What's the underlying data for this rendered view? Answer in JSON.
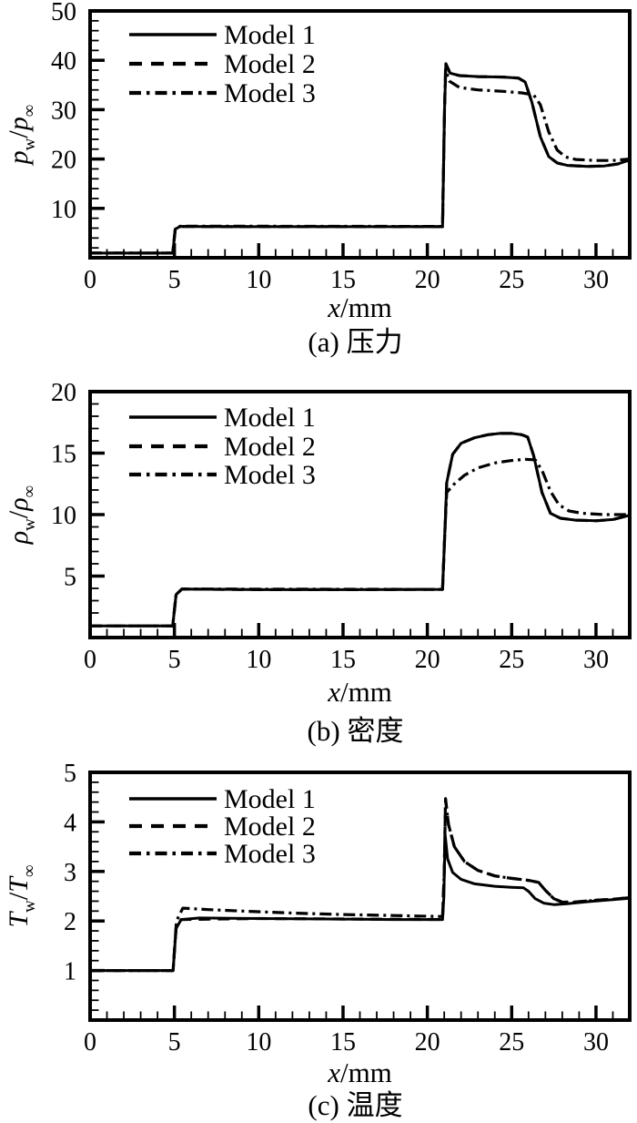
{
  "figure": {
    "ink_color": "#000000",
    "background_color": "#ffffff"
  },
  "chart_data": [
    {
      "type": "line",
      "title": "(a) 压力",
      "xlabel": "x/mm",
      "xlabel_var": "x",
      "xlabel_rest": "/mm",
      "ylabel": "p_w/p_inf",
      "ylabel_parts": {
        "num_base": "p",
        "num_sub": "w",
        "sep": "/",
        "den_base": "p",
        "den_sub": "∞"
      },
      "xlim": [
        0,
        32
      ],
      "ylim": [
        0,
        50
      ],
      "xticks": [
        0,
        5,
        10,
        15,
        20,
        25,
        30
      ],
      "yticks": [
        10,
        20,
        30,
        40,
        50
      ],
      "x_minor_step": 1,
      "y_minor_step": 2,
      "grid": false,
      "legend_position": "top-left",
      "series": [
        {
          "name": "Model 1",
          "line_style": "solid",
          "points": [
            [
              0,
              0.95
            ],
            [
              4.9,
              0.95
            ],
            [
              5.05,
              5.8
            ],
            [
              5.35,
              6.35
            ],
            [
              8,
              6.3
            ],
            [
              12,
              6.3
            ],
            [
              16,
              6.3
            ],
            [
              20.9,
              6.3
            ],
            [
              21.02,
              30
            ],
            [
              21.1,
              39.3
            ],
            [
              21.35,
              37.4
            ],
            [
              21.9,
              36.9
            ],
            [
              23,
              36.7
            ],
            [
              24.5,
              36.6
            ],
            [
              25.4,
              36.4
            ],
            [
              25.8,
              35.6
            ],
            [
              26.2,
              31.5
            ],
            [
              26.7,
              24.5
            ],
            [
              27.2,
              20.5
            ],
            [
              27.7,
              19.2
            ],
            [
              28.3,
              18.7
            ],
            [
              29.5,
              18.5
            ],
            [
              30.5,
              18.6
            ],
            [
              31.3,
              19.0
            ],
            [
              32,
              19.8
            ]
          ]
        },
        {
          "name": "Model 2",
          "line_style": "dashed",
          "points": [
            [
              0,
              0.95
            ],
            [
              4.9,
              0.95
            ],
            [
              5.05,
              5.8
            ],
            [
              5.35,
              6.35
            ],
            [
              8,
              6.3
            ],
            [
              12,
              6.3
            ],
            [
              16,
              6.3
            ],
            [
              20.9,
              6.3
            ],
            [
              21.02,
              30
            ],
            [
              21.1,
              39.3
            ],
            [
              21.35,
              37.4
            ],
            [
              21.9,
              36.9
            ],
            [
              23,
              36.7
            ],
            [
              24.5,
              36.6
            ],
            [
              25.4,
              36.4
            ],
            [
              25.8,
              35.6
            ],
            [
              26.2,
              31.5
            ],
            [
              26.7,
              24.5
            ],
            [
              27.2,
              20.5
            ],
            [
              27.7,
              19.2
            ],
            [
              28.3,
              18.7
            ],
            [
              29.5,
              18.5
            ],
            [
              30.5,
              18.6
            ],
            [
              31.3,
              19.0
            ],
            [
              32,
              19.8
            ]
          ]
        },
        {
          "name": "Model 3",
          "line_style": "dashdot",
          "points": [
            [
              0,
              0.95
            ],
            [
              4.9,
              0.95
            ],
            [
              5.05,
              5.8
            ],
            [
              5.35,
              6.4
            ],
            [
              20.9,
              6.35
            ],
            [
              21.02,
              30
            ],
            [
              21.08,
              38.2
            ],
            [
              21.3,
              35.8
            ],
            [
              21.9,
              34.5
            ],
            [
              23,
              34.0
            ],
            [
              24.5,
              33.7
            ],
            [
              25.6,
              33.4
            ],
            [
              26.3,
              33.0
            ],
            [
              26.7,
              31.0
            ],
            [
              27.2,
              25.5
            ],
            [
              27.7,
              21.8
            ],
            [
              28.2,
              20.4
            ],
            [
              28.8,
              19.9
            ],
            [
              30,
              19.7
            ],
            [
              31,
              19.7
            ],
            [
              32,
              20.0
            ]
          ]
        }
      ]
    },
    {
      "type": "line",
      "title": "(b) 密度",
      "xlabel": "x/mm",
      "xlabel_var": "x",
      "xlabel_rest": "/mm",
      "ylabel": "rho_w/rho_inf",
      "ylabel_parts": {
        "num_base": "ρ",
        "num_sub": "w",
        "sep": "/",
        "den_base": "ρ",
        "den_sub": "∞"
      },
      "xlim": [
        0,
        32
      ],
      "ylim": [
        0,
        20
      ],
      "xticks": [
        0,
        5,
        10,
        15,
        20,
        25,
        30
      ],
      "yticks": [
        5,
        10,
        15,
        20
      ],
      "x_minor_step": 1,
      "y_minor_step": 1,
      "grid": false,
      "legend_position": "top-left",
      "series": [
        {
          "name": "Model 1",
          "line_style": "solid",
          "points": [
            [
              0,
              0.95
            ],
            [
              4.9,
              0.95
            ],
            [
              5.1,
              3.5
            ],
            [
              5.45,
              3.95
            ],
            [
              10,
              3.9
            ],
            [
              15,
              3.9
            ],
            [
              20.9,
              3.92
            ],
            [
              21.05,
              9
            ],
            [
              21.15,
              12.6
            ],
            [
              21.5,
              14.9
            ],
            [
              22,
              15.8
            ],
            [
              22.8,
              16.25
            ],
            [
              23.6,
              16.5
            ],
            [
              24.3,
              16.6
            ],
            [
              25,
              16.6
            ],
            [
              25.6,
              16.5
            ],
            [
              25.95,
              16.3
            ],
            [
              26.3,
              14.8
            ],
            [
              26.8,
              11.8
            ],
            [
              27.3,
              10.1
            ],
            [
              27.9,
              9.7
            ],
            [
              28.8,
              9.55
            ],
            [
              30,
              9.5
            ],
            [
              31,
              9.6
            ],
            [
              32,
              9.95
            ]
          ]
        },
        {
          "name": "Model 2",
          "line_style": "dashed",
          "points": [
            [
              0,
              0.95
            ],
            [
              4.9,
              0.95
            ],
            [
              5.1,
              3.5
            ],
            [
              5.45,
              3.95
            ],
            [
              10,
              3.9
            ],
            [
              15,
              3.9
            ],
            [
              20.9,
              3.92
            ],
            [
              21.05,
              9
            ],
            [
              21.15,
              12.6
            ],
            [
              21.5,
              14.9
            ],
            [
              22,
              15.8
            ],
            [
              22.8,
              16.25
            ],
            [
              23.6,
              16.5
            ],
            [
              24.3,
              16.6
            ],
            [
              25,
              16.6
            ],
            [
              25.6,
              16.5
            ],
            [
              25.95,
              16.3
            ],
            [
              26.3,
              14.8
            ],
            [
              26.8,
              11.8
            ],
            [
              27.3,
              10.1
            ],
            [
              27.9,
              9.7
            ],
            [
              28.8,
              9.55
            ],
            [
              30,
              9.5
            ],
            [
              31,
              9.6
            ],
            [
              32,
              9.95
            ]
          ]
        },
        {
          "name": "Model 3",
          "line_style": "dashdot",
          "points": [
            [
              0,
              0.95
            ],
            [
              4.9,
              0.95
            ],
            [
              5.1,
              3.5
            ],
            [
              5.45,
              3.95
            ],
            [
              20.9,
              3.92
            ],
            [
              21.05,
              9
            ],
            [
              21.15,
              11.8
            ],
            [
              21.6,
              12.5
            ],
            [
              22.2,
              13.2
            ],
            [
              23,
              13.8
            ],
            [
              24,
              14.2
            ],
            [
              25,
              14.4
            ],
            [
              25.8,
              14.5
            ],
            [
              26.4,
              14.45
            ],
            [
              26.8,
              13.6
            ],
            [
              27.3,
              11.9
            ],
            [
              27.8,
              10.8
            ],
            [
              28.4,
              10.3
            ],
            [
              29.2,
              10.1
            ],
            [
              30.5,
              10.0
            ],
            [
              32,
              10.0
            ]
          ]
        }
      ]
    },
    {
      "type": "line",
      "title": "(c) 温度",
      "xlabel": "x/mm",
      "xlabel_var": "x",
      "xlabel_rest": "/mm",
      "ylabel": "T_w/T_inf",
      "ylabel_parts": {
        "num_base": "T",
        "num_sub": "w",
        "sep": "/",
        "den_base": "T",
        "den_sub": "∞"
      },
      "xlim": [
        0,
        32
      ],
      "ylim": [
        0,
        5
      ],
      "xticks": [
        0,
        5,
        10,
        15,
        20,
        25,
        30
      ],
      "yticks": [
        1,
        2,
        3,
        4,
        5
      ],
      "x_minor_step": 1,
      "y_minor_step": 0.2,
      "grid": false,
      "legend_position": "top-left",
      "series": [
        {
          "name": "Model 1",
          "line_style": "solid",
          "points": [
            [
              0,
              1.0
            ],
            [
              4.92,
              1.0
            ],
            [
              5.1,
              1.85
            ],
            [
              5.4,
              2.03
            ],
            [
              6.5,
              2.06
            ],
            [
              10,
              2.05
            ],
            [
              14,
              2.04
            ],
            [
              18,
              2.03
            ],
            [
              20.9,
              2.03
            ],
            [
              20.98,
              2.5
            ],
            [
              21.05,
              3.75
            ],
            [
              21.2,
              3.25
            ],
            [
              21.5,
              2.98
            ],
            [
              22,
              2.84
            ],
            [
              22.8,
              2.75
            ],
            [
              24,
              2.7
            ],
            [
              25,
              2.68
            ],
            [
              25.7,
              2.67
            ],
            [
              26,
              2.6
            ],
            [
              26.4,
              2.45
            ],
            [
              26.9,
              2.36
            ],
            [
              27.5,
              2.33
            ],
            [
              28.3,
              2.35
            ],
            [
              29.5,
              2.39
            ],
            [
              31,
              2.43
            ],
            [
              32,
              2.46
            ]
          ]
        },
        {
          "name": "Model 2",
          "line_style": "dashed",
          "points": [
            [
              0,
              1.0
            ],
            [
              4.92,
              1.0
            ],
            [
              5.1,
              1.85
            ],
            [
              5.4,
              2.03
            ],
            [
              10,
              2.05
            ],
            [
              20.9,
              2.03
            ],
            [
              21.0,
              3.0
            ],
            [
              21.08,
              4.47
            ],
            [
              21.25,
              3.95
            ],
            [
              21.6,
              3.5
            ],
            [
              22.2,
              3.2
            ],
            [
              23,
              3.02
            ],
            [
              24,
              2.91
            ],
            [
              25,
              2.86
            ],
            [
              26,
              2.82
            ],
            [
              26.6,
              2.78
            ],
            [
              27.0,
              2.62
            ],
            [
              27.5,
              2.45
            ],
            [
              28,
              2.38
            ],
            [
              28.7,
              2.38
            ],
            [
              30,
              2.42
            ],
            [
              31,
              2.44
            ],
            [
              32,
              2.47
            ]
          ]
        },
        {
          "name": "Model 3",
          "line_style": "dashdot",
          "points": [
            [
              0,
              1.0
            ],
            [
              4.92,
              1.0
            ],
            [
              5.12,
              2.0
            ],
            [
              5.5,
              2.26
            ],
            [
              7,
              2.23
            ],
            [
              9,
              2.2
            ],
            [
              12,
              2.16
            ],
            [
              15,
              2.13
            ],
            [
              18,
              2.11
            ],
            [
              20.9,
              2.09
            ],
            [
              21.0,
              3.0
            ],
            [
              21.08,
              4.45
            ],
            [
              21.25,
              3.95
            ],
            [
              21.6,
              3.5
            ],
            [
              22.2,
              3.2
            ],
            [
              23,
              3.02
            ],
            [
              24,
              2.91
            ],
            [
              25,
              2.86
            ],
            [
              26,
              2.82
            ],
            [
              26.6,
              2.78
            ],
            [
              27.0,
              2.62
            ],
            [
              27.5,
              2.45
            ],
            [
              28,
              2.38
            ],
            [
              28.7,
              2.38
            ],
            [
              30,
              2.42
            ],
            [
              31,
              2.44
            ],
            [
              32,
              2.47
            ]
          ]
        }
      ]
    }
  ]
}
